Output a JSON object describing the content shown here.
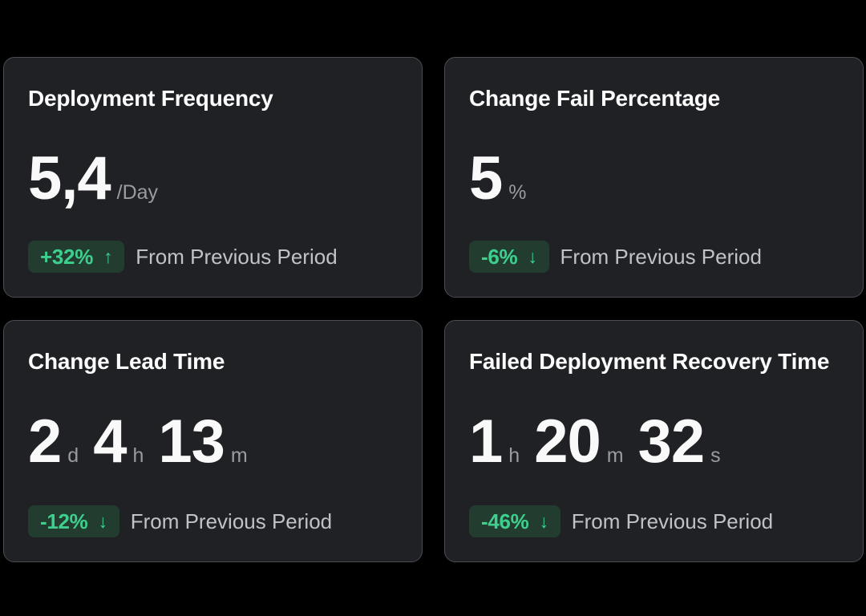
{
  "theme": {
    "page_bg": "#000000",
    "card_bg": "#1f2124",
    "card_border": "#4b4d55",
    "title_color": "#fcfcfc",
    "number_color": "#f9f9f9",
    "unit_color": "#9b9b9f",
    "caption_color": "#c2c2c6",
    "badge_text_color": "#3ecf8e",
    "badge_bg": "#223d30"
  },
  "cards": [
    {
      "title": "Deployment Frequency",
      "segments": [
        {
          "num": "5,4",
          "unit": "/Day"
        }
      ],
      "delta": "+32%",
      "arrow": "↑",
      "trend_direction": "up",
      "caption": "From Previous Period"
    },
    {
      "title": "Change Fail Percentage",
      "segments": [
        {
          "num": "5",
          "unit": "%"
        }
      ],
      "delta": "-6%",
      "arrow": "↓",
      "trend_direction": "down",
      "caption": "From Previous Period"
    },
    {
      "title": "Change Lead Time",
      "segments": [
        {
          "num": "2",
          "unit": "d"
        },
        {
          "num": "4",
          "unit": "h"
        },
        {
          "num": "13",
          "unit": "m"
        }
      ],
      "delta": "-12%",
      "arrow": "↓",
      "trend_direction": "down",
      "caption": "From Previous Period"
    },
    {
      "title": "Failed Deployment Recovery Time",
      "segments": [
        {
          "num": "1",
          "unit": "h"
        },
        {
          "num": "20",
          "unit": "m"
        },
        {
          "num": "32",
          "unit": "s"
        }
      ],
      "delta": "-46%",
      "arrow": "↓",
      "trend_direction": "down",
      "caption": "From Previous Period"
    }
  ]
}
